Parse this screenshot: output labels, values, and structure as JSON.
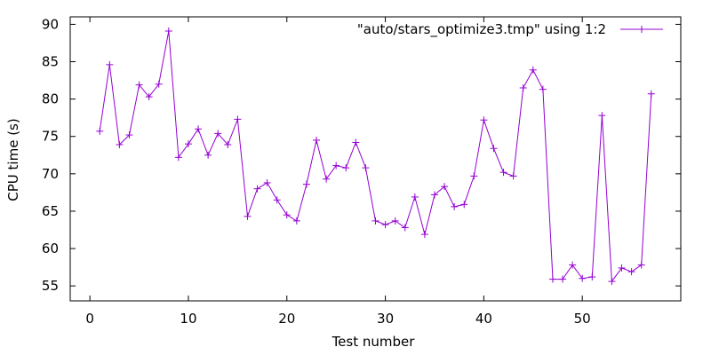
{
  "chart_data": {
    "type": "line",
    "title": "",
    "xlabel": "Test number",
    "ylabel": "CPU time (s)",
    "xlim": [
      -2,
      60
    ],
    "ylim": [
      53,
      91
    ],
    "xticks": [
      0,
      10,
      20,
      30,
      40,
      50
    ],
    "yticks": [
      55,
      60,
      65,
      70,
      75,
      80,
      85,
      90
    ],
    "grid": false,
    "legend_position": "top-right",
    "series": [
      {
        "name": "\"auto/stars_optimize3.tmp\" using 1:2",
        "color": "#9400d3",
        "marker": "plus",
        "x": [
          1,
          2,
          3,
          4,
          5,
          6,
          7,
          8,
          9,
          10,
          11,
          12,
          13,
          14,
          15,
          16,
          17,
          18,
          19,
          20,
          21,
          22,
          23,
          24,
          25,
          26,
          27,
          28,
          29,
          30,
          31,
          32,
          33,
          34,
          35,
          36,
          37,
          38,
          39,
          40,
          41,
          42,
          43,
          44,
          45,
          46,
          47,
          48,
          49,
          50,
          51,
          52,
          53,
          54,
          55,
          56,
          57
        ],
        "values": [
          75.7,
          84.6,
          73.9,
          75.2,
          81.9,
          80.3,
          82.0,
          89.1,
          72.2,
          74.0,
          76.0,
          72.5,
          75.4,
          73.9,
          77.3,
          64.3,
          68.0,
          68.8,
          66.5,
          64.5,
          63.7,
          68.6,
          74.5,
          69.3,
          71.1,
          70.8,
          74.2,
          70.8,
          63.7,
          63.2,
          63.7,
          62.8,
          66.9,
          61.9,
          67.2,
          68.3,
          65.6,
          65.9,
          69.7,
          77.2,
          73.4,
          70.2,
          69.7,
          81.5,
          83.9,
          81.3,
          55.9,
          55.9,
          57.8,
          56.0,
          56.2,
          77.8,
          55.6,
          57.4,
          56.9,
          57.8,
          80.7
        ]
      }
    ]
  },
  "colors": {
    "series": "#9400d3",
    "axis": "#000000",
    "background": "#ffffff"
  }
}
